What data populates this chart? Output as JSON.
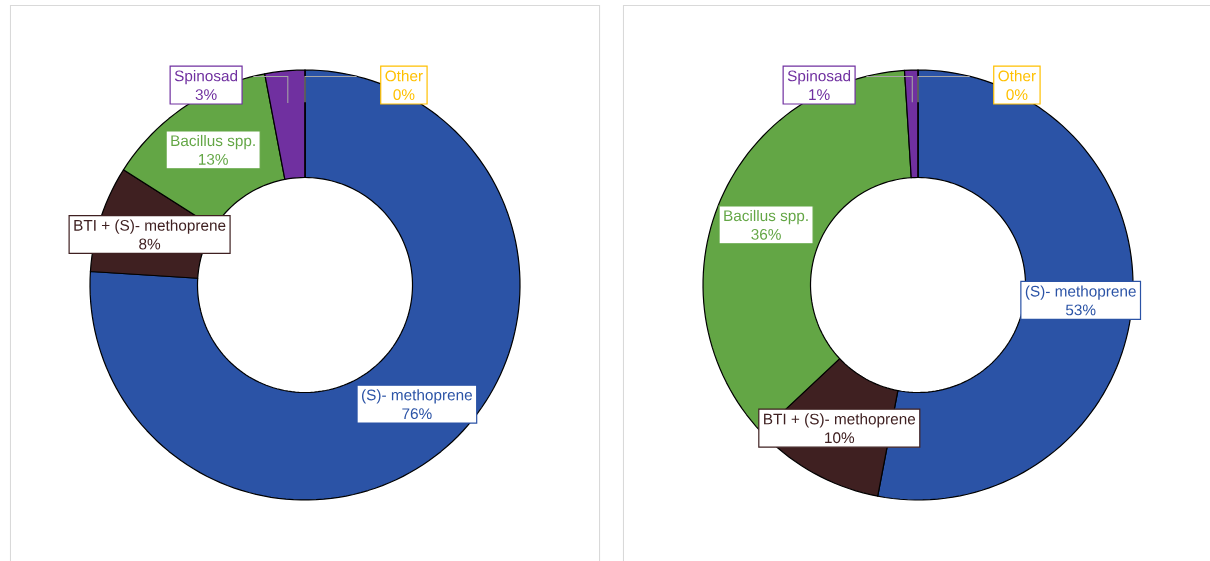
{
  "chart_data": [
    {
      "type": "donut",
      "categories": [
        "(S)- methoprene",
        "BTI + (S)- methoprene",
        "Bacillus spp.",
        "Spinosad",
        "Other"
      ],
      "values": [
        76,
        8,
        13,
        3,
        0
      ],
      "colors": [
        "#2b53a6",
        "#3f2021",
        "#63a645",
        "#7030a0",
        "#ffc000"
      ],
      "value_labels": [
        "76%",
        "8%",
        "13%",
        "3%",
        "0%"
      ]
    },
    {
      "type": "donut",
      "categories": [
        "(S)- methoprene",
        "BTI + (S)- methoprene",
        "Bacillus spp.",
        "Spinosad",
        "Other"
      ],
      "values": [
        53,
        10,
        36,
        1,
        0
      ],
      "colors": [
        "#2b53a6",
        "#3f2021",
        "#63a645",
        "#7030a0",
        "#ffc000"
      ],
      "value_labels": [
        "53%",
        "10%",
        "36%",
        "1%",
        "0%"
      ]
    }
  ]
}
